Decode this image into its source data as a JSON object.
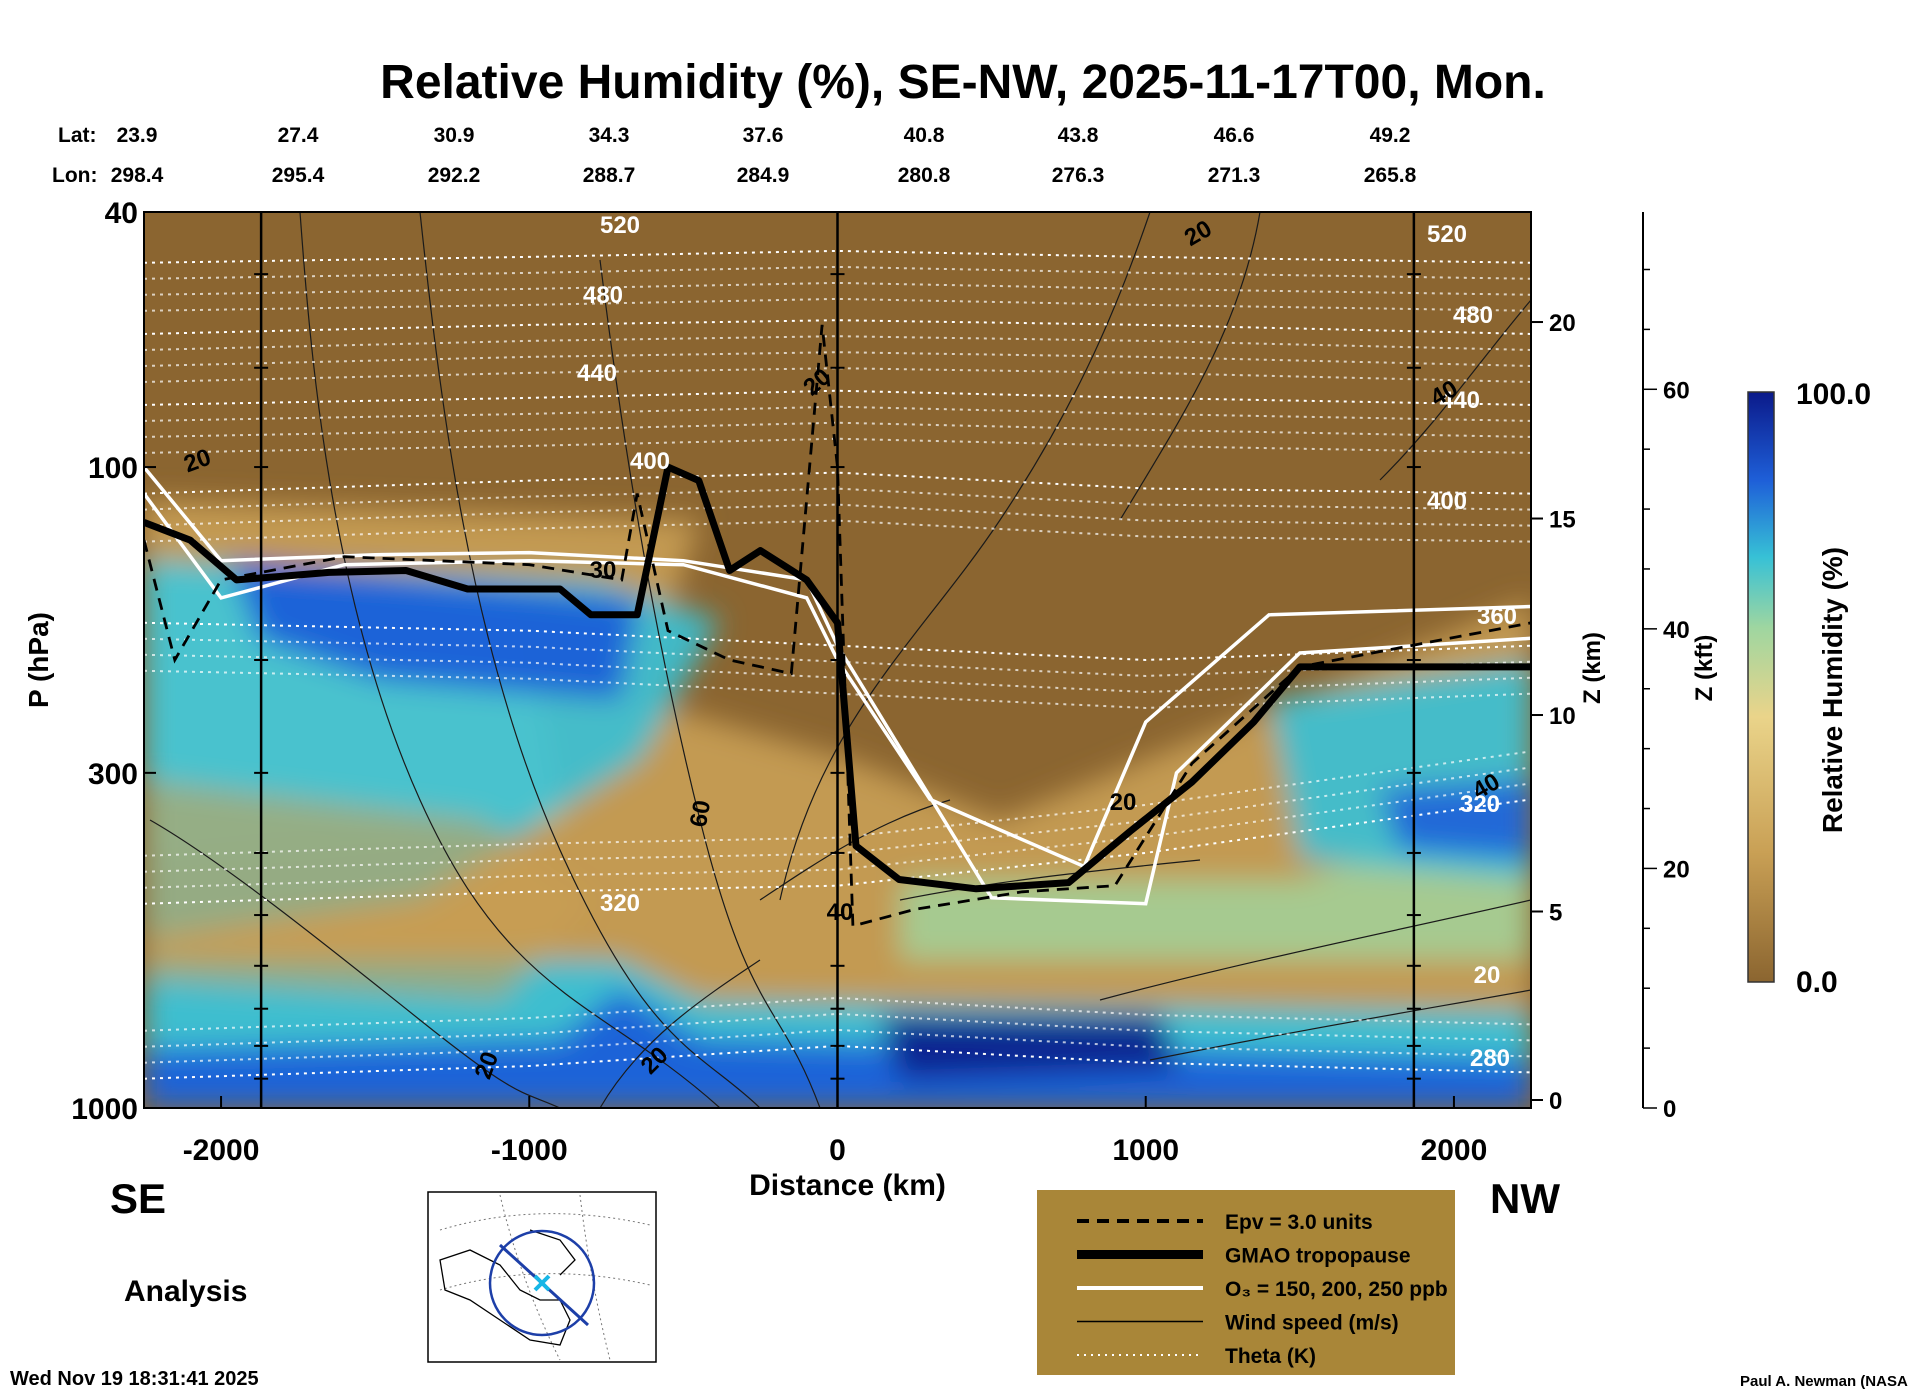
{
  "title": "Relative Humidity (%), SE-NW, 2025-11-17T00, Mon.",
  "header": {
    "lat_label": "Lat:",
    "lon_label": "Lon:",
    "lat": [
      "23.9",
      "27.4",
      "30.9",
      "34.3",
      "37.6",
      "40.8",
      "43.8",
      "46.6",
      "49.2"
    ],
    "lon": [
      "298.4",
      "295.4",
      "292.2",
      "288.7",
      "284.9",
      "280.8",
      "276.3",
      "271.3",
      "265.8"
    ]
  },
  "labels": {
    "left_dir": "SE",
    "right_dir": "NW",
    "mode": "Analysis",
    "timestamp": "Wed Nov 19 18:31:41 2025",
    "credit": "Paul A. Newman (NASA"
  },
  "legend": {
    "items": [
      {
        "label": "Epv = 3.0 units",
        "style": "dashed"
      },
      {
        "label": "GMAO tropopause",
        "style": "thick"
      },
      {
        "label": "O₃ = 150, 200, 250 ppb",
        "style": "white"
      },
      {
        "label": "Wind speed (m/s)",
        "style": "thin"
      },
      {
        "label": "Theta (K)",
        "style": "dotted"
      }
    ]
  },
  "colors": {
    "dry": "#8b6530",
    "tan": "#c9a055",
    "yellow": "#ead48a",
    "green": "#9fd6a0",
    "cyan": "#37c1d6",
    "blue": "#1e5fd8",
    "navy": "#0b1a8a",
    "legend_bg": "#a98638"
  },
  "chart_data": {
    "type": "heatmap",
    "title": "Relative Humidity (%), SE-NW, 2025-11-17T00, Mon.",
    "xlabel": "Distance (km)",
    "ylabel": "P (hPa)",
    "xlim": [
      -2250,
      2250
    ],
    "ylim": [
      1000,
      40
    ],
    "x_ticks": [
      -2000,
      -1000,
      0,
      1000,
      2000
    ],
    "x_tick_labels": [
      "-2000",
      "-1000",
      "0",
      "1000",
      "2000"
    ],
    "y_ticks": [
      1000,
      300,
      100,
      40
    ],
    "y_tick_labels": [
      "1000",
      "300",
      "100",
      "40"
    ],
    "z_km_label": "Z (km)",
    "z_km_ticks": [
      0,
      5,
      10,
      15,
      20
    ],
    "z_km_tick_labels": [
      "0",
      "5",
      "10",
      "15",
      "20"
    ],
    "z_kft_label": "Z (kft)",
    "z_kft_ticks": [
      0,
      20,
      40,
      60
    ],
    "z_kft_tick_labels": [
      "0",
      "20",
      "40",
      "60"
    ],
    "colorbar": {
      "label": "Relative Humidity (%)",
      "min": 0.0,
      "max": 100.0,
      "min_label": "0.0",
      "max_label": "100.0"
    },
    "theta_contours": [
      {
        "theta": 280,
        "label": "280",
        "points": [
          [
            -2250,
            900
          ],
          [
            -1000,
            860
          ],
          [
            0,
            800
          ],
          [
            1000,
            850
          ],
          [
            2250,
            880
          ]
        ]
      },
      {
        "theta": 320,
        "label": "320",
        "points": [
          [
            -2250,
            480
          ],
          [
            -1000,
            460
          ],
          [
            0,
            450
          ],
          [
            1000,
            400
          ],
          [
            2250,
            330
          ]
        ]
      },
      {
        "theta": 360,
        "label": "360",
        "points": [
          [
            -2250,
            175
          ],
          [
            -1000,
            180
          ],
          [
            0,
            190
          ],
          [
            1000,
            200
          ],
          [
            2250,
            190
          ]
        ]
      },
      {
        "theta": 400,
        "label": "400",
        "points": [
          [
            -2250,
            110
          ],
          [
            -1000,
            105
          ],
          [
            0,
            102
          ],
          [
            1000,
            108
          ],
          [
            2250,
            110
          ]
        ]
      },
      {
        "theta": 440,
        "label": "440",
        "points": [
          [
            -2250,
            80
          ],
          [
            -1000,
            78
          ],
          [
            0,
            76
          ],
          [
            1000,
            78
          ],
          [
            2250,
            80
          ]
        ]
      },
      {
        "theta": 480,
        "label": "480",
        "points": [
          [
            -2250,
            62
          ],
          [
            -1000,
            60
          ],
          [
            0,
            59
          ],
          [
            1000,
            60
          ],
          [
            2250,
            62
          ]
        ]
      },
      {
        "theta": 520,
        "label": "520",
        "points": [
          [
            -2250,
            48
          ],
          [
            -1000,
            47
          ],
          [
            0,
            46
          ],
          [
            1000,
            47
          ],
          [
            2250,
            48
          ]
        ]
      }
    ],
    "theta_extra_labels": [
      "520",
      "480",
      "440",
      "400",
      "360",
      "320",
      "20"
    ],
    "wind_labels": [
      "20",
      "20",
      "20",
      "20",
      "30",
      "60",
      "40",
      "20",
      "40",
      "40",
      "20"
    ],
    "tropopause": {
      "label": "GMAO tropopause",
      "points": [
        [
          -2250,
          122
        ],
        [
          -2100,
          130
        ],
        [
          -1950,
          150
        ],
        [
          -1800,
          148
        ],
        [
          -1650,
          146
        ],
        [
          -1400,
          145
        ],
        [
          -1200,
          155
        ],
        [
          -900,
          155
        ],
        [
          -800,
          170
        ],
        [
          -650,
          170
        ],
        [
          -550,
          100
        ],
        [
          -450,
          105
        ],
        [
          -350,
          145
        ],
        [
          -250,
          135
        ],
        [
          -100,
          150
        ],
        [
          0,
          175
        ],
        [
          60,
          390
        ],
        [
          200,
          440
        ],
        [
          450,
          455
        ],
        [
          750,
          445
        ],
        [
          950,
          370
        ],
        [
          1150,
          310
        ],
        [
          1350,
          250
        ],
        [
          1500,
          205
        ],
        [
          2250,
          205
        ]
      ]
    },
    "epv_3_line": {
      "label": "Epv = 3.0 units",
      "points": [
        [
          -2250,
          130
        ],
        [
          -2150,
          200
        ],
        [
          -2000,
          150
        ],
        [
          -1600,
          138
        ],
        [
          -1000,
          142
        ],
        [
          -700,
          150
        ],
        [
          -650,
          110
        ],
        [
          -550,
          180
        ],
        [
          -350,
          200
        ],
        [
          -150,
          210
        ],
        [
          -50,
          60
        ],
        [
          0,
          100
        ],
        [
          50,
          520
        ],
        [
          250,
          490
        ],
        [
          600,
          460
        ],
        [
          900,
          450
        ],
        [
          1150,
          290
        ],
        [
          1500,
          205
        ],
        [
          2250,
          175
        ]
      ]
    },
    "ozone_contours": [
      {
        "ppb": 150,
        "points": [
          [
            -2250,
            110
          ],
          [
            -2000,
            160
          ],
          [
            -1600,
            142
          ],
          [
            -1000,
            140
          ],
          [
            -500,
            142
          ],
          [
            -100,
            160
          ],
          [
            0,
            200
          ],
          [
            300,
            330
          ],
          [
            800,
            420
          ],
          [
            1000,
            250
          ],
          [
            1400,
            170
          ],
          [
            2250,
            165
          ]
        ]
      },
      {
        "ppb": 200,
        "points": [
          [
            -2250,
            100
          ],
          [
            -2000,
            140
          ],
          [
            -1500,
            137
          ],
          [
            -1000,
            136
          ],
          [
            -500,
            140
          ],
          [
            -100,
            150
          ],
          [
            0,
            190
          ],
          [
            500,
            470
          ],
          [
            1000,
            480
          ],
          [
            1100,
            300
          ],
          [
            1500,
            195
          ],
          [
            2250,
            185
          ]
        ]
      }
    ]
  }
}
